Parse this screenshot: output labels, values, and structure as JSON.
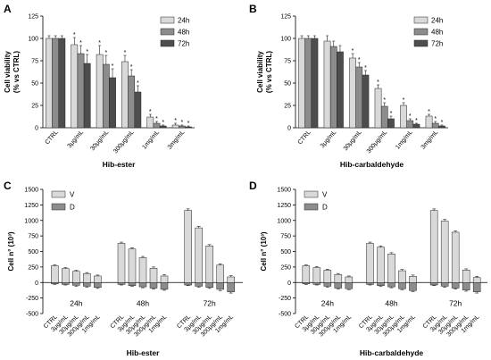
{
  "chart_data": [
    {
      "panel_label": "A",
      "type": "bar",
      "xlabel": "Hib-ester",
      "ylabel": "Cell viability\n(% vs CTRL)",
      "ylim": [
        0,
        125
      ],
      "yticks": [
        0,
        25,
        50,
        75,
        100,
        125
      ],
      "grid": false,
      "legend_position": "top-right",
      "categories": [
        "CTRL",
        "3μg/mL",
        "30μg/mL",
        "300μg/mL",
        "1mg/mL",
        "3mg/mL"
      ],
      "series": [
        {
          "name": "24h",
          "color": "#d9d9d9",
          "values": [
            100,
            93,
            82,
            74,
            12,
            3
          ],
          "err": [
            3,
            8,
            10,
            7,
            3,
            2
          ],
          "sig": [
            "",
            "*",
            "*",
            "*",
            "*",
            "*"
          ]
        },
        {
          "name": "48h",
          "color": "#8c8c8c",
          "values": [
            100,
            83,
            71,
            58,
            5,
            2
          ],
          "err": [
            3,
            9,
            10,
            7,
            2,
            1
          ],
          "sig": [
            "",
            "*",
            "*",
            "*",
            "*",
            "*"
          ]
        },
        {
          "name": "72h",
          "color": "#4d4d4d",
          "values": [
            100,
            72,
            56,
            40,
            2,
            1
          ],
          "err": [
            3,
            10,
            10,
            7,
            1,
            1
          ],
          "sig": [
            "",
            "*",
            "*",
            "*",
            "*",
            "*"
          ]
        }
      ]
    },
    {
      "panel_label": "B",
      "type": "bar",
      "xlabel": "Hib-carbaldehyde",
      "ylabel": "Cell viability\n(% vs CTRL)",
      "ylim": [
        0,
        125
      ],
      "yticks": [
        0,
        25,
        50,
        75,
        100,
        125
      ],
      "grid": false,
      "legend_position": "top-right",
      "categories": [
        "CTRL",
        "3μg/mL",
        "30μg/mL",
        "300μg/mL",
        "1mg/mL",
        "3mg/mL"
      ],
      "series": [
        {
          "name": "24h",
          "color": "#d9d9d9",
          "values": [
            100,
            97,
            78,
            44,
            25,
            13
          ],
          "err": [
            3,
            6,
            5,
            4,
            3,
            2
          ],
          "sig": [
            "",
            "",
            "*",
            "*",
            "*",
            "*"
          ]
        },
        {
          "name": "48h",
          "color": "#8c8c8c",
          "values": [
            100,
            91,
            68,
            24,
            8,
            5
          ],
          "err": [
            3,
            6,
            5,
            4,
            2,
            2
          ],
          "sig": [
            "",
            "",
            "*",
            "*",
            "*",
            "*"
          ]
        },
        {
          "name": "72h",
          "color": "#4d4d4d",
          "values": [
            100,
            85,
            59,
            10,
            4,
            2
          ],
          "err": [
            3,
            7,
            5,
            3,
            1,
            1
          ],
          "sig": [
            "",
            "",
            "*",
            "*",
            "*",
            "*"
          ]
        }
      ]
    },
    {
      "panel_label": "C",
      "type": "bar",
      "xlabel": "Hib-ester",
      "ylabel": "Cell n° (10³)",
      "ylim": [
        -500,
        1500
      ],
      "yticks": [
        -500,
        -250,
        0,
        250,
        500,
        750,
        1000,
        1250,
        1500
      ],
      "grid": false,
      "legend_position": "top-left",
      "categories": [
        "CTRL",
        "3μg/mL",
        "30μg/mL",
        "300μg/mL",
        "1mg/mL"
      ],
      "group_labels": [
        "24h",
        "48h",
        "72h"
      ],
      "series": [
        {
          "name": "V",
          "color": "#d9d9d9",
          "values": [
            [
              270,
              225,
              180,
              145,
              105
            ],
            [
              630,
              540,
              400,
              230,
              105
            ],
            [
              1160,
              880,
              590,
              280,
              90
            ]
          ],
          "err": [
            [
              15,
              15,
              15,
              15,
              15
            ],
            [
              20,
              20,
              20,
              20,
              20
            ],
            [
              25,
              25,
              20,
              20,
              20
            ]
          ]
        },
        {
          "name": "D",
          "color": "#8c8c8c",
          "values": [
            [
              -20,
              -30,
              -45,
              -60,
              -80
            ],
            [
              -30,
              -50,
              -70,
              -90,
              -110
            ],
            [
              -40,
              -60,
              -80,
              -110,
              -150
            ]
          ],
          "err": [
            [
              10,
              10,
              15,
              15,
              15
            ],
            [
              10,
              15,
              15,
              15,
              15
            ],
            [
              10,
              15,
              15,
              20,
              20
            ]
          ]
        }
      ]
    },
    {
      "panel_label": "D",
      "type": "bar",
      "xlabel": "Hib-carbaldehyde",
      "ylabel": "Cell n° (10³)",
      "ylim": [
        -500,
        1500
      ],
      "yticks": [
        -500,
        -250,
        0,
        250,
        500,
        750,
        1000,
        1250,
        1500
      ],
      "grid": false,
      "legend_position": "top-left",
      "categories": [
        "CTRL",
        "3μg/mL",
        "30μg/mL",
        "300μg/mL",
        "1mg/mL"
      ],
      "group_labels": [
        "24h",
        "48h",
        "72h"
      ],
      "series": [
        {
          "name": "V",
          "color": "#d9d9d9",
          "values": [
            [
              270,
              240,
              200,
              130,
              90
            ],
            [
              630,
              570,
              460,
              190,
              100
            ],
            [
              1160,
              990,
              810,
              200,
              80
            ]
          ],
          "err": [
            [
              15,
              15,
              15,
              15,
              15
            ],
            [
              20,
              20,
              20,
              20,
              20
            ],
            [
              25,
              25,
              20,
              20,
              20
            ]
          ]
        },
        {
          "name": "D",
          "color": "#8c8c8c",
          "values": [
            [
              -20,
              -30,
              -60,
              -90,
              -100
            ],
            [
              -30,
              -50,
              -70,
              -100,
              -130
            ],
            [
              -40,
              -60,
              -90,
              -120,
              -150
            ]
          ],
          "err": [
            [
              10,
              10,
              15,
              15,
              15
            ],
            [
              10,
              15,
              15,
              15,
              15
            ],
            [
              10,
              15,
              15,
              20,
              20
            ]
          ]
        }
      ]
    }
  ]
}
